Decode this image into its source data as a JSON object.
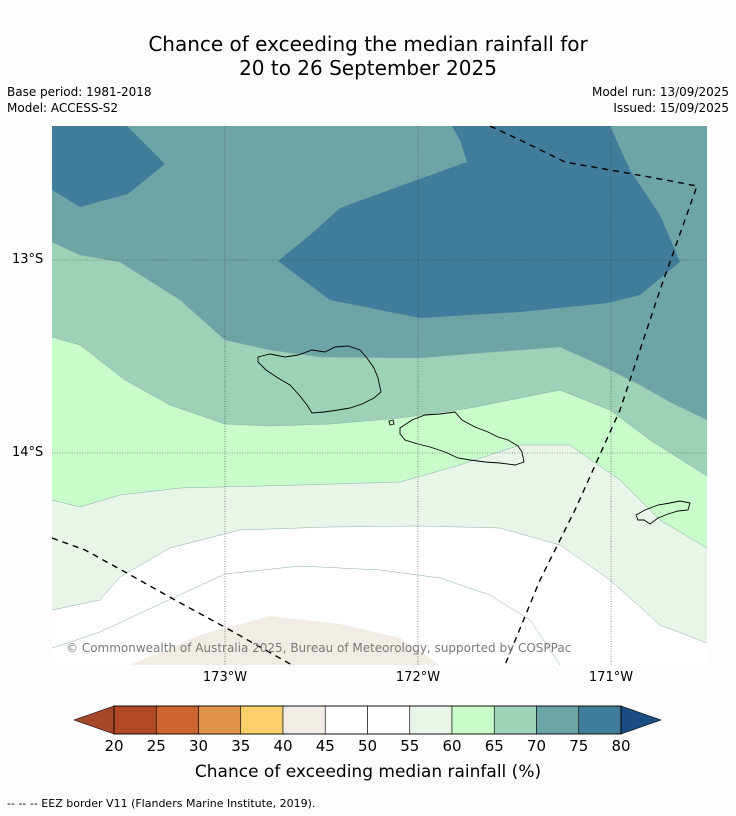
{
  "title_line1": "Chance of exceeding the median rainfall for",
  "title_line2": "20 to 26 September 2025",
  "meta_left": [
    "Base period: 1981-2018",
    "Model: ACCESS-S2"
  ],
  "meta_right": [
    "Model run: 13/09/2025",
    "Issued: 15/09/2025"
  ],
  "lat_labels": [
    "13°S",
    "14°S"
  ],
  "lon_labels": [
    "173°W",
    "172°W",
    "171°W"
  ],
  "copyright": "© Commonwealth of Australia 2025, Bureau of Meteorology, supported by COSPPac",
  "colorbar": {
    "ticks": [
      "20",
      "25",
      "30",
      "35",
      "40",
      "45",
      "50",
      "55",
      "60",
      "65",
      "70",
      "75",
      "80"
    ],
    "colors": [
      "#b04a26",
      "#cc6532",
      "#e0944a",
      "#fdd06b",
      "#f1ede6",
      "#ffffff",
      "#ffffff",
      "#e9f5e9",
      "#c8fcca",
      "#9dd1b8",
      "#6da5a7",
      "#417c9a"
    ],
    "low_arrow_color": "#a6462a",
    "high_arrow_color": "#1b4d82",
    "title": "Chance of exceeding median rainfall (%)"
  },
  "footnote": "-- -- -- EEZ border V11 (Flanders Marine Institute, 2019).",
  "legend_colors": {
    "c40_45": "#f1ede6",
    "c45_55": "#ffffff",
    "c55_60": "#e9f5e9",
    "c60_65": "#c8fcca",
    "c65_70": "#9dd1b8",
    "c70_75": "#6da5a7",
    "c75_80": "#417c9a"
  }
}
